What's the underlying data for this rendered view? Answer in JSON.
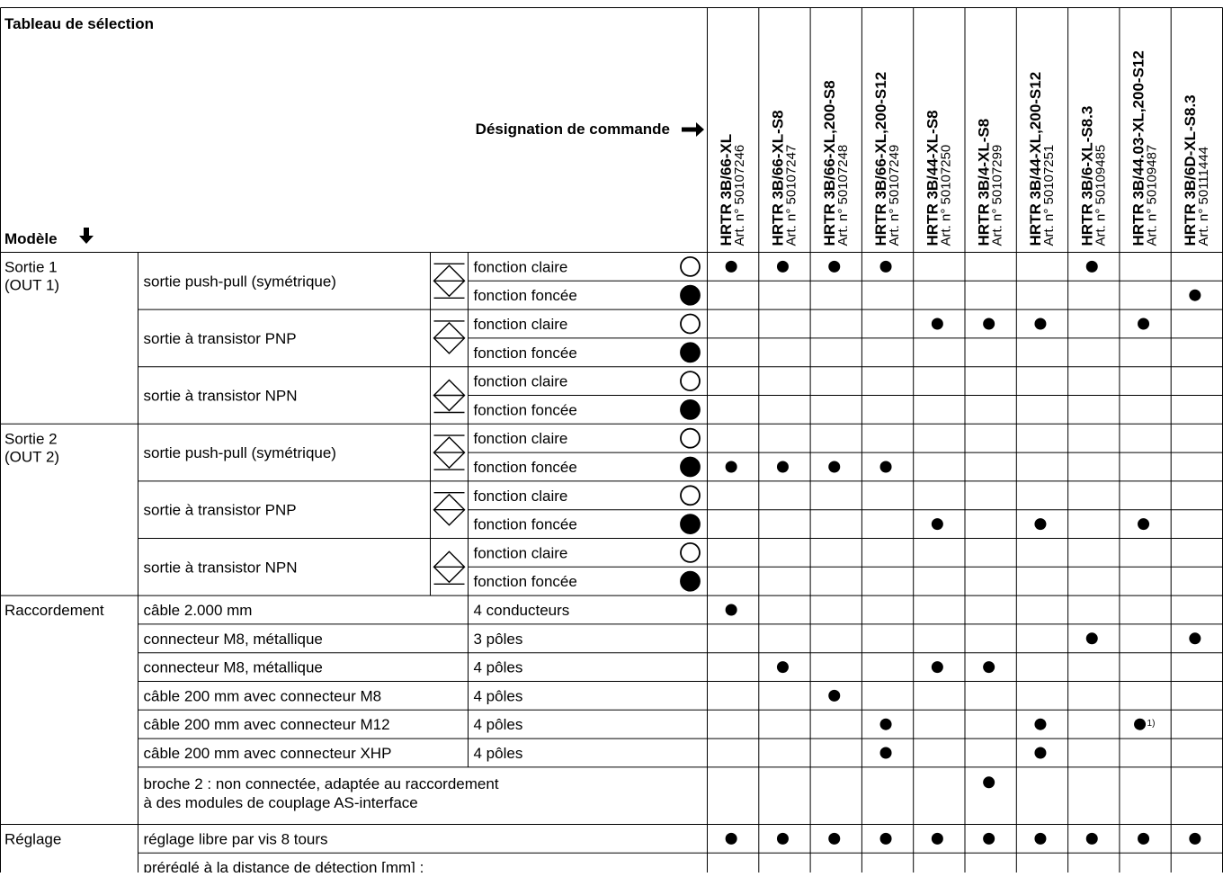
{
  "header": {
    "title": "Tableau de sélection",
    "designation_label": "Désignation de commande",
    "model_label": "Modèle",
    "arrow_right": "➔",
    "arrow_down": "🡇"
  },
  "columns": [
    {
      "model": "HRTR 3B/66-XL",
      "art": "Art. n° 50107246"
    },
    {
      "model": "HRTR 3B/66-XL-S8",
      "art": "Art. n° 50107247"
    },
    {
      "model": "HRTR 3B/66-XL,200-S8",
      "art": "Art. n° 50107248"
    },
    {
      "model": "HRTR 3B/66-XL,200-S12",
      "art": "Art. n° 50107249"
    },
    {
      "model": "HRTR 3B/44-XL-S8",
      "art": "Art. n° 50107250"
    },
    {
      "model": "HRTR 3B/4-XL-S8",
      "art": "Art. n° 50107299"
    },
    {
      "model": "HRTR 3B/44-XL,200-S12",
      "art": "Art. n° 50107251"
    },
    {
      "model": "HRTR 3B/6-XL-S8.3",
      "art": "Art. n° 50109485"
    },
    {
      "model": "HRTR 3B/44.03-XL,200-S12",
      "art": "Art. n° 50109487"
    },
    {
      "model": "HRTR 3B/6D-XL-S8.3",
      "art": "Art. n° 50111444"
    }
  ],
  "groups": {
    "out1": "Sortie 1\n(OUT 1)",
    "out2": "Sortie 2\n(OUT 2)",
    "raccordement": "Raccordement",
    "reglage": "Réglage"
  },
  "output_types": {
    "pushpull": "sortie push-pull (symétrique)",
    "pnp": "sortie à transistor PNP",
    "npn": "sortie à transistor NPN"
  },
  "functions": {
    "light": "fonction claire",
    "dark": "fonction foncée"
  },
  "output_rows": [
    [
      1,
      1,
      1,
      1,
      0,
      0,
      0,
      1,
      0,
      0
    ],
    [
      0,
      0,
      0,
      0,
      0,
      0,
      0,
      0,
      0,
      1
    ],
    [
      0,
      0,
      0,
      0,
      1,
      1,
      1,
      0,
      1,
      0
    ],
    [
      0,
      0,
      0,
      0,
      0,
      0,
      0,
      0,
      0,
      0
    ],
    [
      0,
      0,
      0,
      0,
      0,
      0,
      0,
      0,
      0,
      0
    ],
    [
      0,
      0,
      0,
      0,
      0,
      0,
      0,
      0,
      0,
      0
    ],
    [
      0,
      0,
      0,
      0,
      0,
      0,
      0,
      0,
      0,
      0
    ],
    [
      1,
      1,
      1,
      1,
      0,
      0,
      0,
      0,
      0,
      0
    ],
    [
      0,
      0,
      0,
      0,
      0,
      0,
      0,
      0,
      0,
      0
    ],
    [
      0,
      0,
      0,
      0,
      1,
      0,
      1,
      0,
      1,
      0
    ],
    [
      0,
      0,
      0,
      0,
      0,
      0,
      0,
      0,
      0,
      0
    ],
    [
      0,
      0,
      0,
      0,
      0,
      0,
      0,
      0,
      0,
      0
    ]
  ],
  "connection_rows": [
    {
      "label": "câble 2.000 mm",
      "spec": "4 conducteurs",
      "marks": [
        1,
        0,
        0,
        0,
        0,
        0,
        0,
        0,
        0,
        0
      ]
    },
    {
      "label": "connecteur M8, métallique",
      "spec": "3 pôles",
      "marks": [
        0,
        0,
        0,
        0,
        0,
        0,
        0,
        1,
        0,
        1
      ]
    },
    {
      "label": "connecteur M8, métallique",
      "spec": "4 pôles",
      "marks": [
        0,
        1,
        0,
        0,
        1,
        1,
        0,
        0,
        0,
        0
      ]
    },
    {
      "label": "câble 200 mm avec connecteur M8",
      "spec": "4 pôles",
      "marks": [
        0,
        0,
        1,
        0,
        0,
        0,
        0,
        0,
        0,
        0
      ]
    },
    {
      "label": "câble 200 mm avec connecteur M12",
      "spec": "4 pôles",
      "marks": [
        0,
        0,
        0,
        1,
        0,
        0,
        1,
        0,
        "1)",
        0
      ]
    },
    {
      "label": "câble 200 mm avec connecteur XHP",
      "spec": "4 pôles",
      "marks": [
        0,
        0,
        0,
        1,
        0,
        0,
        1,
        0,
        0,
        0
      ]
    }
  ],
  "pin_row": {
    "line1": "broche 2 : non connectée, adaptée au raccordement",
    "line2": "à des modules de couplage AS-interface",
    "marks": [
      0,
      0,
      0,
      0,
      0,
      1,
      0,
      0,
      0,
      0
    ]
  },
  "adjust_rows": [
    {
      "label": "réglage libre par vis 8 tours",
      "marks": [
        1,
        1,
        1,
        1,
        1,
        1,
        1,
        1,
        1,
        1
      ]
    },
    {
      "label": "préréglé à la distance de détection [mm] :",
      "marks": [
        0,
        0,
        0,
        0,
        0,
        0,
        0,
        0,
        0,
        0
      ]
    }
  ],
  "icons": {
    "pushpull": "push-pull-output-icon",
    "pnp": "pnp-output-icon",
    "npn": "npn-output-icon",
    "light": "open-circle-icon",
    "dark": "filled-circle-icon",
    "mark": "dot-icon"
  }
}
